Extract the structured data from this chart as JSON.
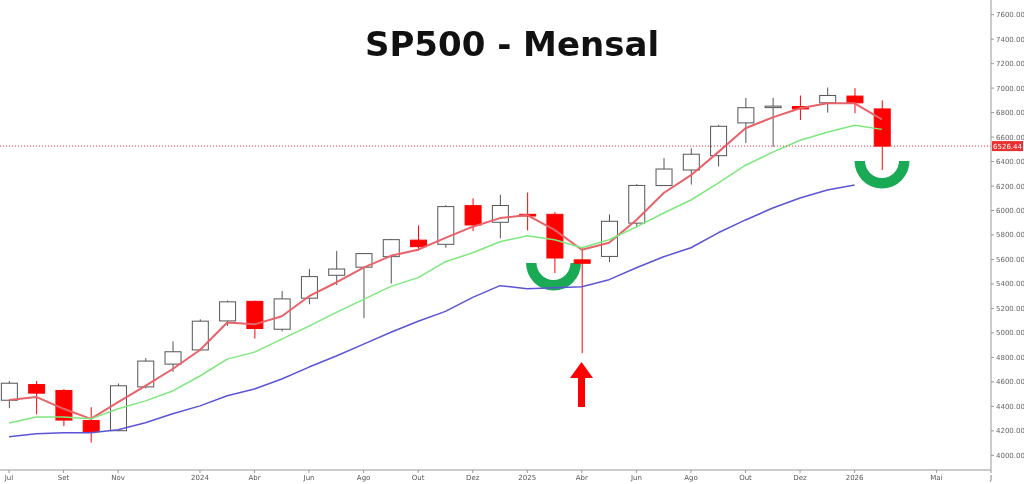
{
  "chart_data": {
    "type": "candlestick",
    "title": "SP500 - Mensal",
    "categories": [
      "Jul",
      null,
      "Set",
      null,
      "Nov",
      null,
      null,
      "2024",
      null,
      "Abr",
      null,
      "Jun",
      null,
      "Ago",
      null,
      "Out",
      null,
      "Dez",
      null,
      "2025",
      null,
      "Abr",
      null,
      "Jun",
      null,
      "Ago",
      null,
      "Out",
      null,
      "Dez",
      null,
      "2026",
      null,
      null,
      "Mai",
      null,
      "J"
    ],
    "ohlc": [
      [
        4450,
        4607,
        4385,
        4589
      ],
      [
        4578,
        4607,
        4335,
        4508
      ],
      [
        4530,
        4541,
        4238,
        4288
      ],
      [
        4284,
        4393,
        4104,
        4194
      ],
      [
        4201,
        4587,
        4197,
        4568
      ],
      [
        4559,
        4794,
        4547,
        4770
      ],
      [
        4745,
        4932,
        4682,
        4846
      ],
      [
        4861,
        5111,
        4853,
        5096
      ],
      [
        5098,
        5265,
        5057,
        5254
      ],
      [
        5258,
        5264,
        4954,
        5036
      ],
      [
        5030,
        5342,
        5012,
        5278
      ],
      [
        5284,
        5524,
        5234,
        5460
      ],
      [
        5471,
        5670,
        5391,
        5522
      ],
      [
        5537,
        5651,
        5120,
        5648
      ],
      [
        5623,
        5768,
        5403,
        5762
      ],
      [
        5758,
        5878,
        5674,
        5705
      ],
      [
        5724,
        6044,
        5696,
        6032
      ],
      [
        6040,
        6100,
        5832,
        5882
      ],
      [
        5904,
        6128,
        5773,
        6041
      ],
      [
        5969,
        6147,
        5837,
        5955
      ],
      [
        5969,
        5986,
        5489,
        5612
      ],
      [
        5597,
        5696,
        4835,
        5569
      ],
      [
        5625,
        5968,
        5578,
        5912
      ],
      [
        5897,
        6215,
        5862,
        6205
      ],
      [
        6204,
        6428,
        6201,
        6339
      ],
      [
        6331,
        6508,
        6212,
        6460
      ],
      [
        6448,
        6700,
        6360,
        6688
      ],
      [
        6716,
        6920,
        6551,
        6840
      ],
      [
        6853,
        6920,
        6521,
        6849
      ],
      [
        6850,
        6940,
        6740,
        6830
      ],
      [
        6880,
        7005,
        6800,
        6940
      ],
      [
        6935,
        7000,
        6795,
        6880
      ],
      [
        6830,
        6900,
        6330,
        6526
      ],
      null,
      null,
      null,
      null
    ],
    "colors": [
      "#ffffff",
      "#ff0000",
      "#ff0000",
      "#ff0000",
      "#ffffff",
      "#ffffff",
      "#ffffff",
      "#ffffff",
      "#ffffff",
      "#ff0000",
      "#ffffff",
      "#ffffff",
      "#ffffff",
      "#ffffff",
      "#ffffff",
      "#ff0000",
      "#ffffff",
      "#ff0000",
      "#ffffff",
      "#ff0000",
      "#ff0000",
      "#ff0000",
      "#ffffff",
      "#ffffff",
      "#ffffff",
      "#ffffff",
      "#ffffff",
      "#ffffff",
      "#ffffff",
      "#ff0000",
      "#ffffff",
      "#ff0000",
      "#ff0000",
      null,
      null,
      null,
      null
    ],
    "series": [
      {
        "type": "line",
        "color": "#e8626a",
        "values": [
          4452,
          4477,
          4380,
          4298,
          4435,
          4567,
          4705,
          4860,
          5085,
          5070,
          5136,
          5300,
          5412,
          5533,
          5630,
          5680,
          5777,
          5868,
          5938,
          5963,
          5842,
          5680,
          5736,
          5923,
          6143,
          6289,
          6477,
          6672,
          6761,
          6835,
          6876,
          6876,
          6745,
          null,
          null,
          null,
          null
        ]
      },
      {
        "type": "line",
        "color": "#7ee87e",
        "values": [
          4264,
          4313,
          4313,
          4298,
          4380,
          4445,
          4526,
          4648,
          4786,
          4843,
          4949,
          5055,
          5168,
          5274,
          5380,
          5452,
          5582,
          5655,
          5745,
          5793,
          5761,
          5696,
          5761,
          5866,
          5980,
          6086,
          6224,
          6370,
          6477,
          6574,
          6639,
          6696,
          6663,
          null,
          null,
          null,
          null
        ]
      },
      {
        "type": "line",
        "color": "#5b55d6",
        "values": [
          4152,
          4176,
          4185,
          4185,
          4209,
          4266,
          4339,
          4404,
          4486,
          4542,
          4624,
          4721,
          4811,
          4908,
          5005,
          5095,
          5176,
          5290,
          5386,
          5360,
          5370,
          5378,
          5435,
          5532,
          5622,
          5696,
          5818,
          5923,
          6021,
          6102,
          6167,
          6208,
          null,
          null,
          null,
          null,
          null
        ]
      }
    ],
    "ylim": [
      3880,
      7720
    ],
    "yticks": [
      {
        "value": 4000,
        "label": "4000.00"
      },
      {
        "value": 4200,
        "label": "4200.00"
      },
      {
        "value": 4400,
        "label": "4400.00"
      },
      {
        "value": 4600,
        "label": "4600.00"
      },
      {
        "value": 4800,
        "label": "4800.00"
      },
      {
        "value": 5000,
        "label": "5000.00"
      },
      {
        "value": 5200,
        "label": "5200.00"
      },
      {
        "value": 5400,
        "label": "5400.00"
      },
      {
        "value": 5600,
        "label": "5600.00"
      },
      {
        "value": 5800,
        "label": "5800.00"
      },
      {
        "value": 6000,
        "label": "6000.00"
      },
      {
        "value": 6200,
        "label": "6200.00"
      },
      {
        "value": 6400,
        "label": "6400.00"
      },
      {
        "value": 6600,
        "label": "6600.00"
      },
      {
        "value": 6800,
        "label": "6800.00"
      },
      {
        "value": 7000,
        "label": "7000.00"
      },
      {
        "value": 7200,
        "label": "7200.00"
      },
      {
        "value": 7400,
        "label": "7400.00"
      },
      {
        "value": 7600,
        "label": "7600.00"
      }
    ],
    "ref_lines": [
      {
        "axis": "y",
        "value": 6526.44,
        "label": "6526.44",
        "color": "#e83030",
        "line_style": "dotted"
      }
    ],
    "tick_labels": "xy"
  }
}
